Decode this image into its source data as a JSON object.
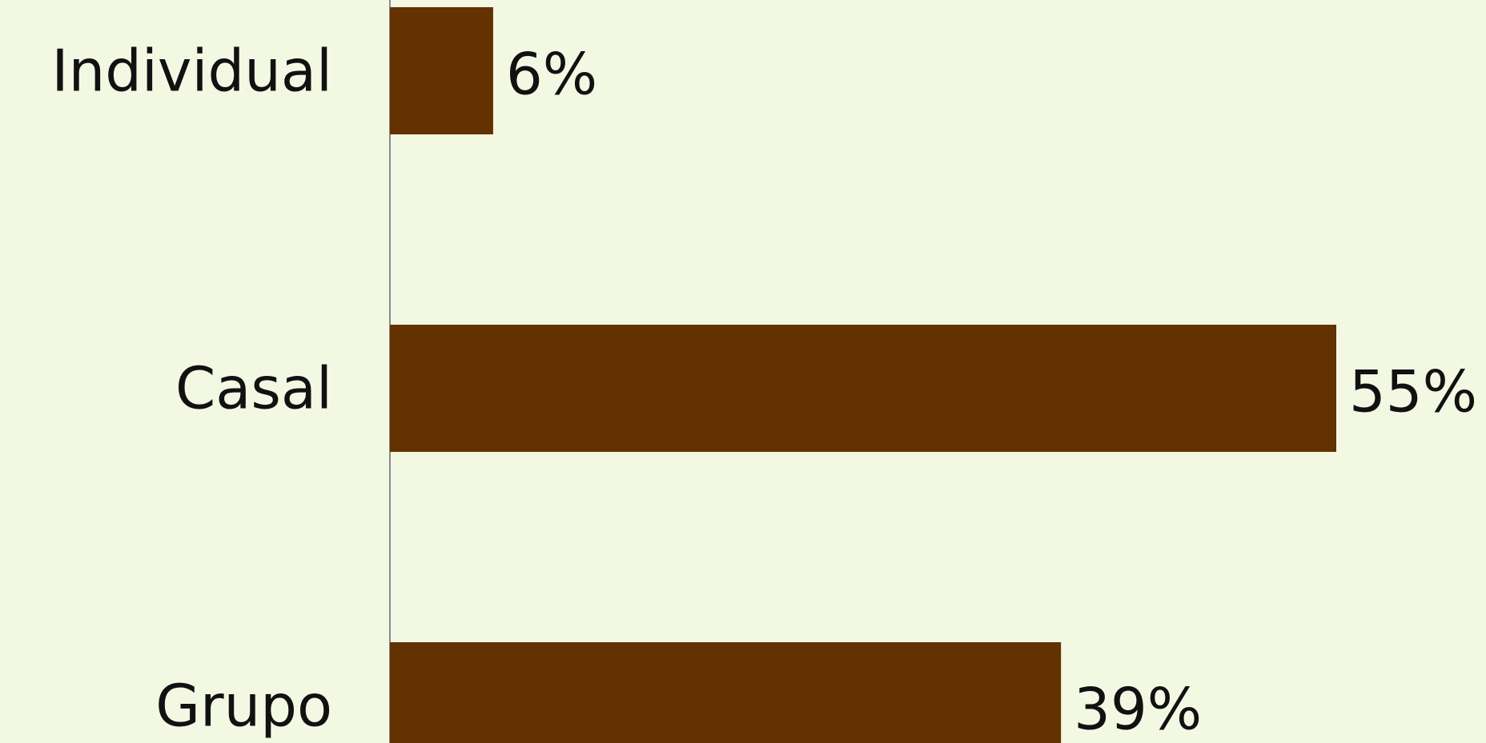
{
  "chart_data": {
    "type": "bar",
    "orientation": "horizontal",
    "categories": [
      "Individual",
      "Casal",
      "Grupo"
    ],
    "values": [
      6,
      55,
      39
    ],
    "value_labels": [
      "6%",
      "55%",
      "39%"
    ],
    "unit": "%",
    "title": "",
    "xlabel": "",
    "ylabel": "",
    "xlim": [
      0,
      55
    ],
    "grid": false,
    "legend": "none"
  },
  "colors": {
    "background": "#f3f8e2",
    "bar": "#643200",
    "axis": "#8a8a8a",
    "text": "#111111"
  }
}
